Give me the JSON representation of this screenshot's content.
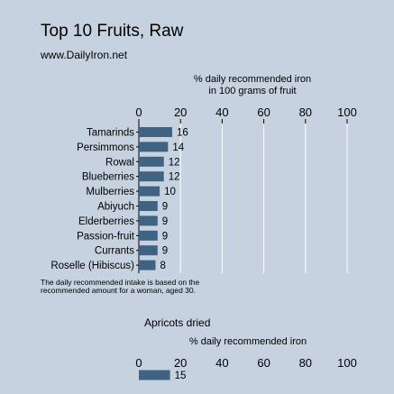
{
  "title": "Top 10 Fruits, Raw",
  "subtitle": "www.DailyIron.net",
  "axis_caption_line1": "% daily recommended iron",
  "axis_caption_line2": "in 100 grams of fruit",
  "note_line1": "The daily recommended intake is based on the",
  "note_line2": "recommended amount for a woman, aged 30.",
  "colors": {
    "background": "#c6d2df",
    "bar": "#3f6381",
    "grid": "#ffffff"
  },
  "chart_data": [
    {
      "type": "bar",
      "orientation": "horizontal",
      "categories": [
        "Tamarinds",
        "Persimmons",
        "Rowal",
        "Blueberries",
        "Mulberries",
        "Abiyuch",
        "Elderberries",
        "Passion-fruit",
        "Currants",
        "Roselle (Hibiscus)"
      ],
      "values": [
        16,
        14,
        12,
        12,
        10,
        9,
        9,
        9,
        9,
        8
      ],
      "xlabel": "% daily recommended iron in 100 grams of fruit",
      "xlim": [
        0,
        100
      ],
      "xticks": [
        0,
        20,
        40,
        60,
        80,
        100
      ],
      "grid": true
    },
    {
      "type": "bar",
      "orientation": "horizontal",
      "title": "Apricots dried",
      "categories": [
        ""
      ],
      "values": [
        15
      ],
      "xlabel": "% daily recommended iron",
      "xlim": [
        0,
        100
      ],
      "xticks": [
        0,
        20,
        40,
        60,
        80,
        100
      ],
      "grid": false
    }
  ]
}
